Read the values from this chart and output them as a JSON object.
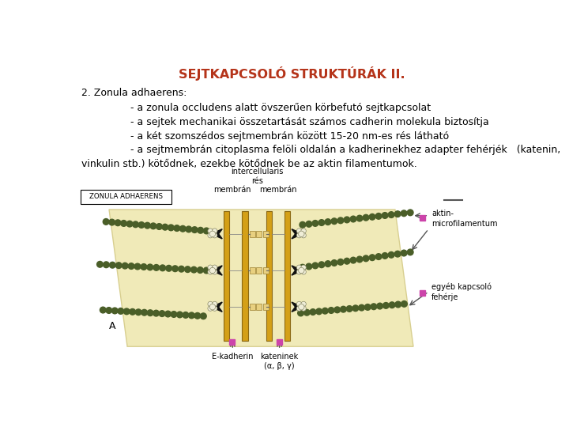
{
  "title": "SEJTKAPCSOLÓ STRUKTÚRÁK II.",
  "title_color": "#B5341A",
  "title_fontsize": 11.5,
  "bg_color": "#FFFFFF",
  "text_color": "#000000",
  "text_fontsize": 9.0,
  "heading": "2. Zonula adhaerens:",
  "bullets": [
    "- a zonula occludens alatt övszerűen körbefutó sejtkapcsolat",
    "- a sejtek mechanikai összetartását számos cadherin molekula biztosítja",
    "- a két szomszédos sejtmembrán között 15-20 nm-es rés látható",
    "- a sejtmembrán citoplasma felöli oldalán a kadherinekhez adapter fehérjék   (katenin,"
  ],
  "last_line": "vinkulin stb.) kötődnek, ezekbe kötődnek be az aktin filamentumok.",
  "font_family": "DejaVu Sans",
  "actin_color": "#4A5E28",
  "membrane_color": "#D4A017",
  "membrane_edge": "#8B6914",
  "blob_color": "#F0EAB8",
  "blob_edge": "#D8CF90",
  "black_anchor": "#1A1A1A",
  "connector_fill": "#E8D080",
  "connector_edge": "#9B8030",
  "arrow_color": "#555555",
  "pink_color": "#CC44AA",
  "label_color": "#000000",
  "label_fs": 7.0
}
